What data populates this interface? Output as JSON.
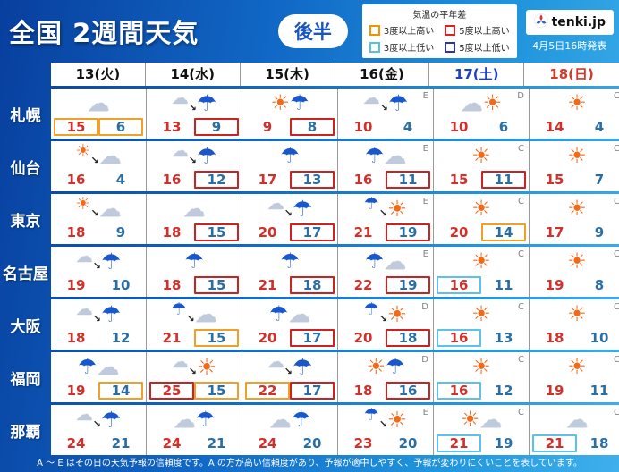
{
  "header": {
    "title": "全国 2週間天気",
    "badge": "後半",
    "legend": {
      "title": "気温の平年差",
      "items": [
        {
          "label": "3度以上高い",
          "color": "#f29400"
        },
        {
          "label": "5度以上高い",
          "color": "#dd2222"
        },
        {
          "label": "3度以上低い",
          "color": "#55c0e4"
        },
        {
          "label": "5度以上低い",
          "color": "#2a35a8"
        }
      ]
    },
    "logo_text": "tenki.jp",
    "issued": "4月5日16時発表"
  },
  "boxColors": {
    "orange": "#f0a028",
    "red": "#cc2222",
    "lightblue": "#5ec2e8"
  },
  "chart_data": {
    "type": "table",
    "title": "全国 2週間天気(後半)",
    "columns": [
      {
        "label": "13(火)",
        "color": "#111111"
      },
      {
        "label": "14(水)",
        "color": "#111111"
      },
      {
        "label": "15(木)",
        "color": "#111111"
      },
      {
        "label": "16(金)",
        "color": "#111111"
      },
      {
        "label": "17(土)",
        "color": "#1c3fc4"
      },
      {
        "label": "18(日)",
        "color": "#d43a2a"
      }
    ],
    "rows": [
      {
        "city": "札幌",
        "cells": [
          {
            "icon": "cloud",
            "high": "15",
            "low": "6",
            "highBox": "orange",
            "lowBox": "orange"
          },
          {
            "icon": "cloud,arrow,rain",
            "high": "13",
            "low": "9",
            "lowBox": "red"
          },
          {
            "icon": "sun,rain",
            "high": "9",
            "low": "8",
            "lowBox": "red"
          },
          {
            "icon": "cloud,arrow,rain",
            "conf": "E",
            "high": "10",
            "low": "4"
          },
          {
            "icon": "cloud,sun",
            "conf": "D",
            "high": "10",
            "low": "6"
          },
          {
            "icon": "sun",
            "conf": "C",
            "high": "14",
            "low": "4"
          }
        ]
      },
      {
        "city": "仙台",
        "cells": [
          {
            "icon": "sun,arrow,cloud",
            "high": "16",
            "low": "4"
          },
          {
            "icon": "cloud,arrow,rain",
            "high": "16",
            "low": "12",
            "lowBox": "red"
          },
          {
            "icon": "rain",
            "high": "17",
            "low": "13",
            "lowBox": "red"
          },
          {
            "icon": "rain,cloud",
            "conf": "E",
            "high": "16",
            "low": "11",
            "lowBox": "red"
          },
          {
            "icon": "sun",
            "conf": "C",
            "high": "15",
            "low": "11",
            "lowBox": "red"
          },
          {
            "icon": "sun",
            "conf": "C",
            "high": "15",
            "low": "7"
          }
        ]
      },
      {
        "city": "東京",
        "cells": [
          {
            "icon": "sun,arrow,cloud",
            "high": "18",
            "low": "9"
          },
          {
            "icon": "cloud",
            "high": "18",
            "low": "15",
            "lowBox": "red"
          },
          {
            "icon": "cloud,arrow,rain",
            "high": "20",
            "low": "17",
            "lowBox": "red"
          },
          {
            "icon": "rain,arrow,sun",
            "conf": "E",
            "high": "21",
            "low": "19",
            "lowBox": "red"
          },
          {
            "icon": "sun",
            "conf": "C",
            "high": "20",
            "low": "14",
            "lowBox": "orange"
          },
          {
            "icon": "sun",
            "conf": "C",
            "high": "17",
            "low": "9"
          }
        ]
      },
      {
        "city": "名古屋",
        "cells": [
          {
            "icon": "cloud,arrow,rain",
            "high": "19",
            "low": "10"
          },
          {
            "icon": "rain",
            "high": "18",
            "low": "15",
            "lowBox": "red"
          },
          {
            "icon": "rain",
            "high": "21",
            "low": "18",
            "lowBox": "red"
          },
          {
            "icon": "rain,cloud",
            "conf": "E",
            "high": "22",
            "low": "19",
            "lowBox": "red"
          },
          {
            "icon": "sun",
            "conf": "C",
            "high": "16",
            "low": "11",
            "highBox": "lightblue"
          },
          {
            "icon": "sun",
            "conf": "C",
            "high": "19",
            "low": "8"
          }
        ]
      },
      {
        "city": "大阪",
        "cells": [
          {
            "icon": "cloud,arrow,rain",
            "high": "18",
            "low": "12"
          },
          {
            "icon": "rain,arrow,cloud",
            "high": "21",
            "low": "15",
            "lowBox": "orange"
          },
          {
            "icon": "rain,cloud",
            "high": "20",
            "low": "17",
            "lowBox": "red"
          },
          {
            "icon": "rain,arrow,sun",
            "conf": "D",
            "high": "20",
            "low": "18",
            "lowBox": "red"
          },
          {
            "icon": "sun",
            "conf": "C",
            "high": "16",
            "low": "13",
            "highBox": "lightblue"
          },
          {
            "icon": "sun",
            "conf": "C",
            "high": "18",
            "low": "10"
          }
        ]
      },
      {
        "city": "福岡",
        "cells": [
          {
            "icon": "rain,cloud",
            "high": "19",
            "low": "14",
            "lowBox": "orange"
          },
          {
            "icon": "cloud,arrow,sun",
            "high": "25",
            "low": "15",
            "highBox": "red",
            "lowBox": "orange"
          },
          {
            "icon": "cloud,arrow,rain",
            "high": "22",
            "low": "17",
            "highBox": "orange",
            "lowBox": "red"
          },
          {
            "icon": "sun,rain",
            "conf": "D",
            "high": "18",
            "low": "16",
            "lowBox": "red"
          },
          {
            "icon": "sun",
            "conf": "C",
            "high": "16",
            "low": "12",
            "highBox": "lightblue"
          },
          {
            "icon": "sun",
            "conf": "C",
            "high": "19",
            "low": "11"
          }
        ]
      },
      {
        "city": "那覇",
        "cells": [
          {
            "icon": "cloud,arrow,rain",
            "high": "24",
            "low": "21"
          },
          {
            "icon": "cloud,rain",
            "high": "24",
            "low": "21"
          },
          {
            "icon": "cloud,rain",
            "high": "24",
            "low": "20"
          },
          {
            "icon": "rain,arrow,sun",
            "conf": "E",
            "high": "23",
            "low": "20"
          },
          {
            "icon": "sun,cloud",
            "conf": "C",
            "high": "21",
            "low": "19",
            "highBox": "lightblue"
          },
          {
            "icon": "cloud",
            "conf": "C",
            "high": "21",
            "low": "18",
            "highBox": "lightblue"
          }
        ]
      }
    ]
  },
  "footer": "A ～ E はその日の天気予報の信頼度です。A の方が高い信頼度があり、予報が適中しやすく、予報が変わりにくいことを表しています。"
}
